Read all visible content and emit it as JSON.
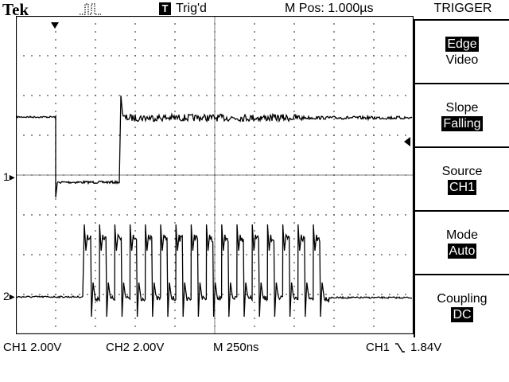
{
  "header": {
    "brand": "Tek",
    "acquisition_icon": "pulse-waveform-icon",
    "trigger_marker": "T",
    "trigger_status": "Trig'd",
    "main_position": "M Pos: 1.000µs"
  },
  "menu": {
    "title": "TRIGGER",
    "items": [
      {
        "label": "Edge",
        "value": "Video",
        "label_highlight": true
      },
      {
        "label": "Slope",
        "value": "Falling",
        "value_highlight": true
      },
      {
        "label": "Source",
        "value": "CH1",
        "value_highlight": true
      },
      {
        "label": "Mode",
        "value": "Auto",
        "value_highlight": true
      },
      {
        "label": "Coupling",
        "value": "DC",
        "value_highlight": true
      }
    ]
  },
  "channels": {
    "ch1_marker": "1",
    "ch2_marker": "2"
  },
  "footer": {
    "ch1_scale": "CH1  2.00V",
    "ch2_scale": "CH2  2.00V",
    "timebase": "M 250ns",
    "trigger_source": "CH1",
    "trigger_level": "1.84V"
  }
}
